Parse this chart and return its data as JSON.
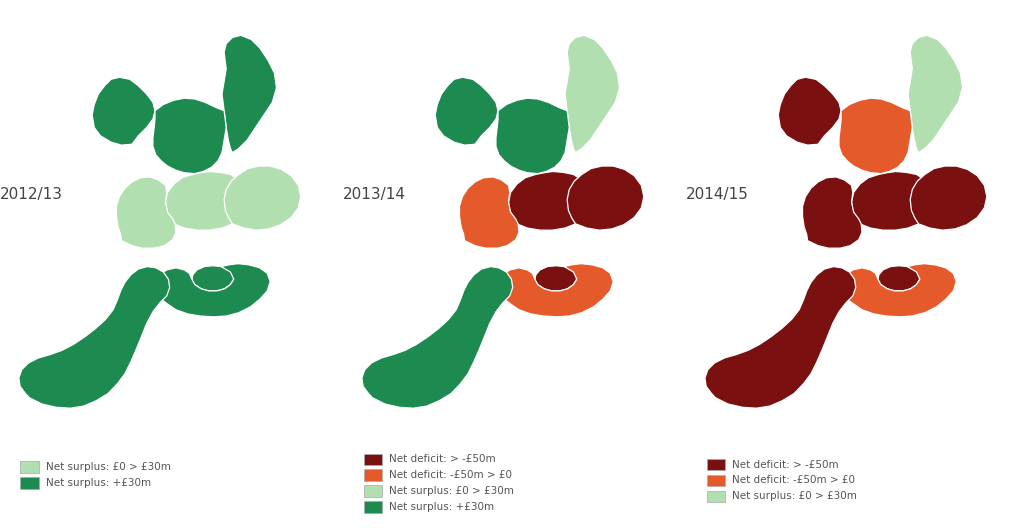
{
  "background_color": "#ffffff",
  "year_labels": [
    "2012/13",
    "2013/14",
    "2014/15"
  ],
  "legend": {
    "col1": [
      {
        "color": "#b2dfb0",
        "label": "Net surplus: £0 > £30m"
      },
      {
        "color": "#1d8a50",
        "label": "Net surplus: +£30m"
      }
    ],
    "col2": [
      {
        "color": "#7b1010",
        "label": "Net deficit: > -£50m"
      },
      {
        "color": "#e55a2b",
        "label": "Net deficit: -£50m > £0"
      },
      {
        "color": "#b2dfb0",
        "label": "Net surplus: £0 > £30m"
      },
      {
        "color": "#1d8a50",
        "label": "Net surplus: +£30m"
      }
    ],
    "col3": [
      {
        "color": "#7b1010",
        "label": "Net deficit: > -£50m"
      },
      {
        "color": "#e55a2b",
        "label": "Net deficit: -£50m > £0"
      },
      {
        "color": "#b2dfb0",
        "label": "Net surplus: £0 > £30m"
      }
    ]
  },
  "region_colors_2012": {
    "north_east": "#1d8a50",
    "north_west": "#1d8a50",
    "yorkshire": "#1d8a50",
    "east_midlands": "#b2dfb0",
    "west_midlands": "#b2dfb0",
    "east_england": "#b2dfb0",
    "london": "#1d8a50",
    "south_east": "#1d8a50",
    "south_west": "#1d8a50"
  },
  "region_colors_2013": {
    "north_east": "#b2dfb0",
    "north_west": "#1d8a50",
    "yorkshire": "#1d8a50",
    "east_midlands": "#7b1010",
    "west_midlands": "#e55a2b",
    "east_england": "#7b1010",
    "london": "#7b1010",
    "south_east": "#e55a2b",
    "south_west": "#1d8a50"
  },
  "region_colors_2014": {
    "north_east": "#b2dfb0",
    "north_west": "#7b1010",
    "yorkshire": "#e55a2b",
    "east_midlands": "#7b1010",
    "west_midlands": "#7b1010",
    "east_england": "#7b1010",
    "london": "#7b1010",
    "south_east": "#e55a2b",
    "south_west": "#7b1010"
  }
}
